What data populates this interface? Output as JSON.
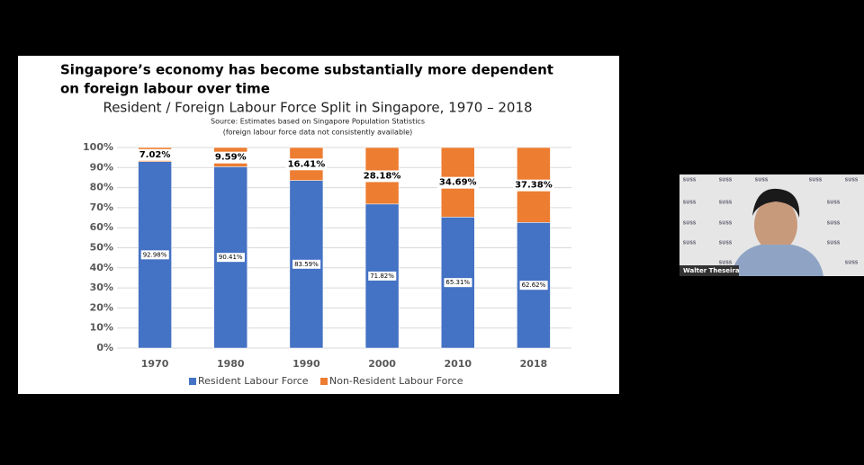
{
  "slide": {
    "heading": [
      "Singapore’s economy has become substantially more dependent",
      "on foreign labour over time"
    ]
  },
  "chart_data": {
    "type": "stacked-bar",
    "title": "Resident / Foreign Labour Force Split in Singapore, 1970 – 2018",
    "subtitle": [
      "Source: Estimates based on Singapore Population Statistics",
      "(foreign labour force data not consistently available)"
    ],
    "categories": [
      "1970",
      "1980",
      "1990",
      "2000",
      "2010",
      "2018"
    ],
    "series": [
      {
        "name": "Resident Labour Force",
        "color": "#4472c4",
        "values": [
          92.98,
          90.41,
          83.59,
          71.82,
          65.31,
          62.62
        ],
        "value_labels": [
          "92.98%",
          "90.41%",
          "83.59%",
          "71.82%",
          "65.31%",
          "62.62%"
        ]
      },
      {
        "name": "Non-Resident Labour Force",
        "color": "#ed7d31",
        "values": [
          7.02,
          9.59,
          16.41,
          28.18,
          34.69,
          37.38
        ],
        "value_labels": [
          "7.02%",
          "9.59%",
          "16.41%",
          "28.18%",
          "34.69%",
          "37.38%"
        ]
      }
    ],
    "ylim": [
      0,
      100
    ],
    "yticks": [
      {
        "value": 0,
        "label": "0%"
      },
      {
        "value": 10,
        "label": "10%"
      },
      {
        "value": 20,
        "label": "20%"
      },
      {
        "value": 30,
        "label": "30%"
      },
      {
        "value": 40,
        "label": "40%"
      },
      {
        "value": 50,
        "label": "50%"
      },
      {
        "value": 60,
        "label": "60%"
      },
      {
        "value": 70,
        "label": "70%"
      },
      {
        "value": 80,
        "label": "80%"
      },
      {
        "value": 90,
        "label": "90%"
      },
      {
        "value": 100,
        "label": "100%"
      }
    ],
    "grid": true,
    "legend": "bottom"
  },
  "video": {
    "participant": "Walter Theseira",
    "backdrop_logo": "SUSS"
  }
}
